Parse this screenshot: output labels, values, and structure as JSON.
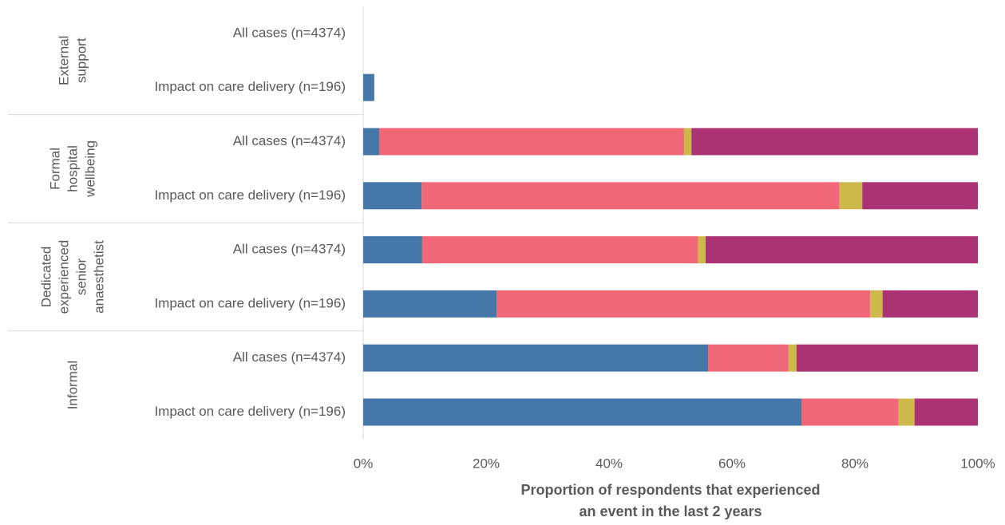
{
  "chart_data": {
    "type": "stacked-barh",
    "groups": [
      {
        "name": [
          "External",
          "support"
        ],
        "categories": [
          "All cases (n=4374)",
          "Impact on care delivery (n=196)"
        ]
      },
      {
        "name": [
          "Formal",
          "hospital",
          "wellbeing"
        ],
        "categories": [
          "All cases (n=4374)",
          "Impact on care delivery (n=196)"
        ]
      },
      {
        "name": [
          "Dedicated",
          "experienced",
          "senior",
          "anaesthetist"
        ],
        "categories": [
          "All cases (n=4374)",
          "Impact on care delivery (n=196)"
        ]
      },
      {
        "name": [
          "Informal"
        ],
        "categories": [
          "All cases (n=4374)",
          "Impact on care delivery (n=196)"
        ]
      }
    ],
    "series": [
      {
        "color": "#4577a8",
        "values": [
          0,
          1.8,
          2.6,
          9.5,
          9.6,
          21.7,
          56.1,
          71.3
        ]
      },
      {
        "color": "#f06878",
        "values": [
          0,
          0,
          49.6,
          68.0,
          44.9,
          60.8,
          13.1,
          15.8
        ]
      },
      {
        "color": "#ccb94a",
        "values": [
          0,
          0,
          1.2,
          3.7,
          1.2,
          2.0,
          1.3,
          2.6
        ]
      },
      {
        "color": "#ab3374",
        "values": [
          0,
          0,
          46.6,
          18.8,
          44.3,
          15.5,
          29.5,
          10.3
        ]
      }
    ],
    "xlim": [
      0,
      100
    ],
    "xticks": [
      {
        "value": 0,
        "label": "0%"
      },
      {
        "value": 20,
        "label": "20%"
      },
      {
        "value": 40,
        "label": "40%"
      },
      {
        "value": 60,
        "label": "60%"
      },
      {
        "value": 80,
        "label": "80%"
      },
      {
        "value": 100,
        "label": "100%"
      }
    ],
    "xlabel": [
      "Proportion of respondents that experienced",
      "an event in the last 2 years"
    ]
  }
}
